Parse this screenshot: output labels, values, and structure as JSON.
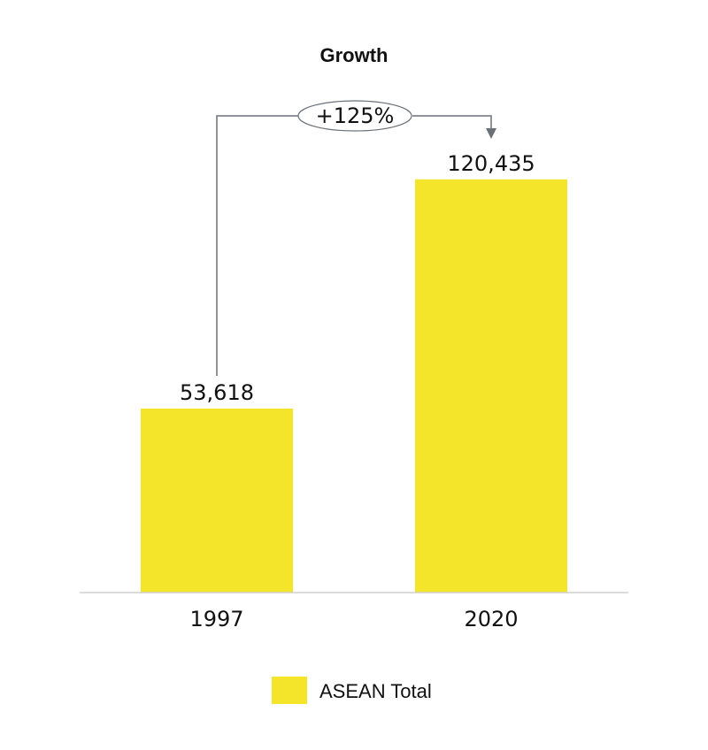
{
  "chart_data": {
    "type": "bar",
    "title": "Growth",
    "categories": [
      "1997",
      "2020"
    ],
    "series": [
      {
        "name": "ASEAN Total",
        "values": [
          53618,
          120435
        ],
        "color": "#f5e52a"
      }
    ],
    "data_labels": [
      "53,618",
      "120,435"
    ],
    "annotation": {
      "text": "+125%",
      "from": "1997",
      "to": "2020"
    },
    "ylim": [
      0,
      130000
    ],
    "grid": false,
    "legend": "bottom",
    "xlabel": "",
    "ylabel": ""
  }
}
